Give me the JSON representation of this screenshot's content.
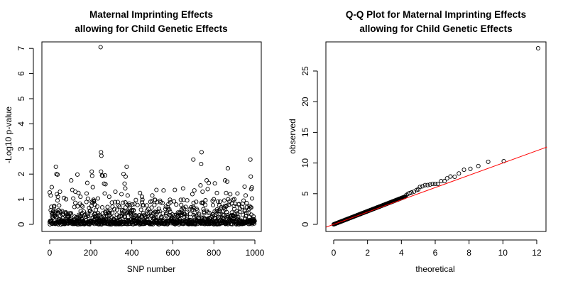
{
  "chart_data": [
    {
      "type": "scatter",
      "title": [
        "Maternal Imprinting Effects",
        "allowing for Child Genetic Effects"
      ],
      "xlabel": "SNP number",
      "ylabel": "-Log10 p-value",
      "xlim": [
        0,
        1000
      ],
      "ylim": [
        0,
        7
      ],
      "xticks": [
        "0",
        "200",
        "400",
        "600",
        "800",
        "1000"
      ],
      "yticks": [
        "0",
        "1",
        "2",
        "3",
        "4",
        "5",
        "6",
        "7"
      ],
      "marker": "open-circle",
      "n_snps": 1000,
      "background_note": "remaining SNPs with -log10 p below 1",
      "notable_points": [
        [
          0,
          1.27
        ],
        [
          5,
          1.15
        ],
        [
          10,
          1.48
        ],
        [
          30,
          2.29
        ],
        [
          33,
          2.0
        ],
        [
          38,
          1.98
        ],
        [
          35,
          1.2
        ],
        [
          40,
          1.1
        ],
        [
          50,
          1.3
        ],
        [
          70,
          1.05
        ],
        [
          80,
          1.0
        ],
        [
          105,
          1.75
        ],
        [
          110,
          1.37
        ],
        [
          115,
          1.03
        ],
        [
          125,
          1.3
        ],
        [
          135,
          1.98
        ],
        [
          140,
          1.25
        ],
        [
          150,
          1.1
        ],
        [
          180,
          1.23
        ],
        [
          183,
          1.65
        ],
        [
          186,
          1.02
        ],
        [
          205,
          2.1
        ],
        [
          207,
          1.93
        ],
        [
          210,
          1.48
        ],
        [
          235,
          1.03
        ],
        [
          248,
          7.05
        ],
        [
          250,
          2.87
        ],
        [
          252,
          2.73
        ],
        [
          250,
          2.1
        ],
        [
          255,
          1.95
        ],
        [
          258,
          1.93
        ],
        [
          265,
          1.62
        ],
        [
          272,
          1.6
        ],
        [
          270,
          1.95
        ],
        [
          268,
          1.23
        ],
        [
          290,
          1.1
        ],
        [
          320,
          1.3
        ],
        [
          350,
          1.2
        ],
        [
          360,
          2.0
        ],
        [
          365,
          1.62
        ],
        [
          368,
          1.43
        ],
        [
          370,
          1.9
        ],
        [
          375,
          2.29
        ],
        [
          380,
          1.15
        ],
        [
          440,
          1.25
        ],
        [
          450,
          1.1
        ],
        [
          500,
          1.15
        ],
        [
          520,
          1.37
        ],
        [
          555,
          1.35
        ],
        [
          610,
          1.37
        ],
        [
          650,
          1.43
        ],
        [
          695,
          1.2
        ],
        [
          700,
          2.58
        ],
        [
          705,
          1.35
        ],
        [
          735,
          1.55
        ],
        [
          738,
          2.4
        ],
        [
          740,
          2.87
        ],
        [
          745,
          1.3
        ],
        [
          765,
          1.75
        ],
        [
          770,
          1.4
        ],
        [
          775,
          1.65
        ],
        [
          800,
          1.0
        ],
        [
          805,
          1.63
        ],
        [
          815,
          1.25
        ],
        [
          855,
          1.75
        ],
        [
          860,
          1.25
        ],
        [
          865,
          1.7
        ],
        [
          868,
          2.23
        ],
        [
          870,
          1.0
        ],
        [
          880,
          1.2
        ],
        [
          900,
          1.0
        ],
        [
          915,
          1.23
        ],
        [
          950,
          1.5
        ],
        [
          955,
          1.15
        ],
        [
          978,
          2.58
        ],
        [
          980,
          1.9
        ],
        [
          982,
          1.4
        ],
        [
          985,
          1.47
        ],
        [
          986,
          1.03
        ]
      ]
    },
    {
      "type": "scatter",
      "title": [
        "Q-Q Plot for Maternal Imprinting Effects",
        "allowing for Child Genetic Effects"
      ],
      "xlabel": "theoretical",
      "ylabel": "observed",
      "xlim": [
        0,
        12
      ],
      "ylim": [
        0,
        28.7
      ],
      "xticks": [
        "0",
        "2",
        "4",
        "6",
        "8",
        "10",
        "12"
      ],
      "yticks": [
        "0",
        "5",
        "10",
        "15",
        "20",
        "25"
      ],
      "marker": "open-circle",
      "reference_line": {
        "intercept": 0,
        "slope": 1,
        "color": "#ff0000"
      },
      "bulk": {
        "from": 0,
        "to": 4.25,
        "slope": 1.07
      },
      "tail_points": [
        [
          4.3,
          4.8
        ],
        [
          4.4,
          5.0
        ],
        [
          4.5,
          5.1
        ],
        [
          4.6,
          5.2
        ],
        [
          4.75,
          5.35
        ],
        [
          4.9,
          5.6
        ],
        [
          5.0,
          5.7
        ],
        [
          5.1,
          6.1
        ],
        [
          5.25,
          6.2
        ],
        [
          5.4,
          6.4
        ],
        [
          5.55,
          6.4
        ],
        [
          5.7,
          6.5
        ],
        [
          5.85,
          6.6
        ],
        [
          6.0,
          6.6
        ],
        [
          6.15,
          6.6
        ],
        [
          6.35,
          7.05
        ],
        [
          6.55,
          7.05
        ],
        [
          6.7,
          7.5
        ],
        [
          6.9,
          7.8
        ],
        [
          7.15,
          7.75
        ],
        [
          7.4,
          8.3
        ],
        [
          7.7,
          8.9
        ],
        [
          8.08,
          9.05
        ],
        [
          8.55,
          9.5
        ],
        [
          9.13,
          10.2
        ],
        [
          10.05,
          10.3
        ],
        [
          12.08,
          28.7
        ]
      ]
    }
  ]
}
